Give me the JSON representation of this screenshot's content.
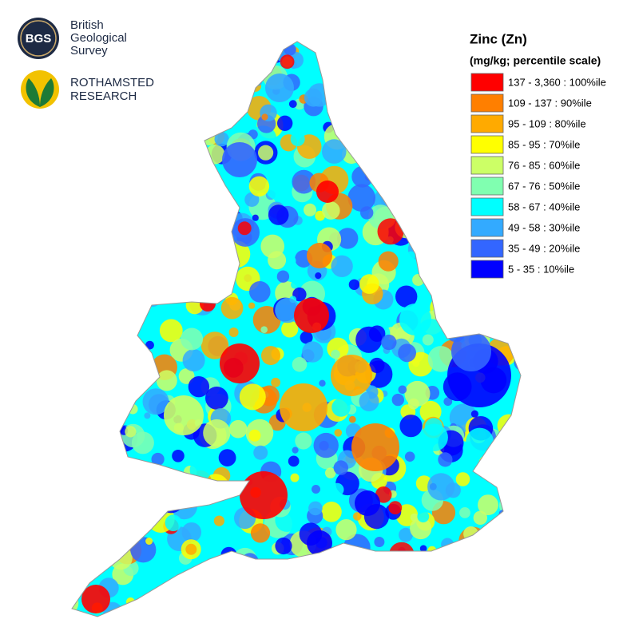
{
  "logos": {
    "bgs": {
      "mark": "BGS",
      "lines": [
        "British",
        "Geological",
        "Survey"
      ]
    },
    "rothamsted": {
      "lines": [
        "ROTHAMSTED",
        "RESEARCH"
      ]
    }
  },
  "legend": {
    "title": "Zinc (Zn)",
    "subtitle": "(mg/kg; percentile scale)",
    "items": [
      {
        "label": "137 - 3,360 : 100%ile",
        "color": "#ff0000"
      },
      {
        "label": "109 - 137 : 90%ile",
        "color": "#ff7f00"
      },
      {
        "label": "95 - 109 : 80%ile",
        "color": "#ffaa00"
      },
      {
        "label": "85 - 95 : 70%ile",
        "color": "#ffff00"
      },
      {
        "label": "76 - 85 : 60%ile",
        "color": "#ccff66"
      },
      {
        "label": "67 - 76 : 50%ile",
        "color": "#80ffb0"
      },
      {
        "label": "58 - 67 : 40%ile",
        "color": "#00ffff"
      },
      {
        "label": "49 - 58 : 30%ile",
        "color": "#33aaff"
      },
      {
        "label": "35 - 49 : 20%ile",
        "color": "#3366ff"
      },
      {
        "label": "5 - 35 : 10%ile",
        "color": "#0000ff"
      }
    ]
  }
}
